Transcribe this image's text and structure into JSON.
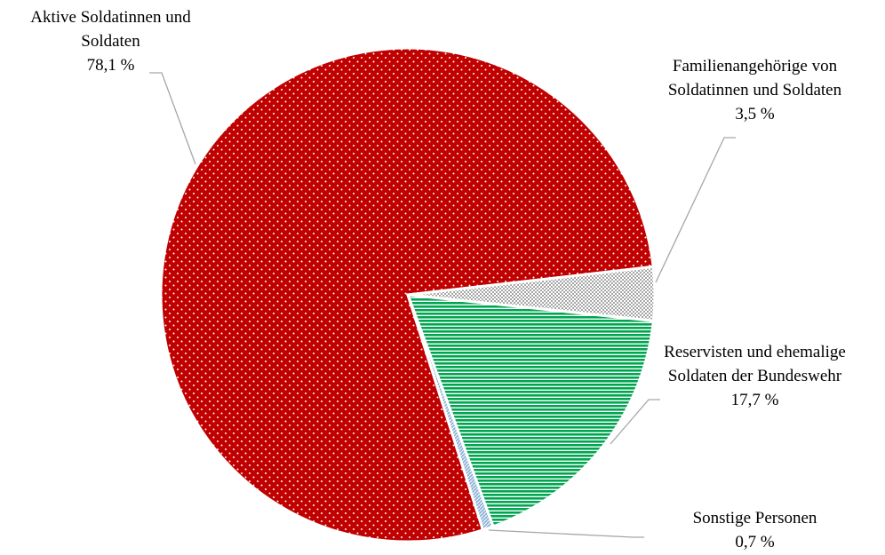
{
  "chart_data": {
    "type": "pie",
    "categories": [
      "Aktive Soldatinnen und Soldaten",
      "Familienangehörige von Soldatinnen und Soldaten",
      "Reservisten und ehemalige Soldaten der Bundeswehr",
      "Sonstige Personen"
    ],
    "values": [
      78.1,
      3.5,
      17.7,
      0.7
    ],
    "value_labels": [
      "78,1 %",
      "3,5 %",
      "17,7 %",
      "0,7 %"
    ],
    "colors": [
      "#c00000",
      "#a6a6a6",
      "#00a550",
      "#8fb4d8"
    ]
  }
}
